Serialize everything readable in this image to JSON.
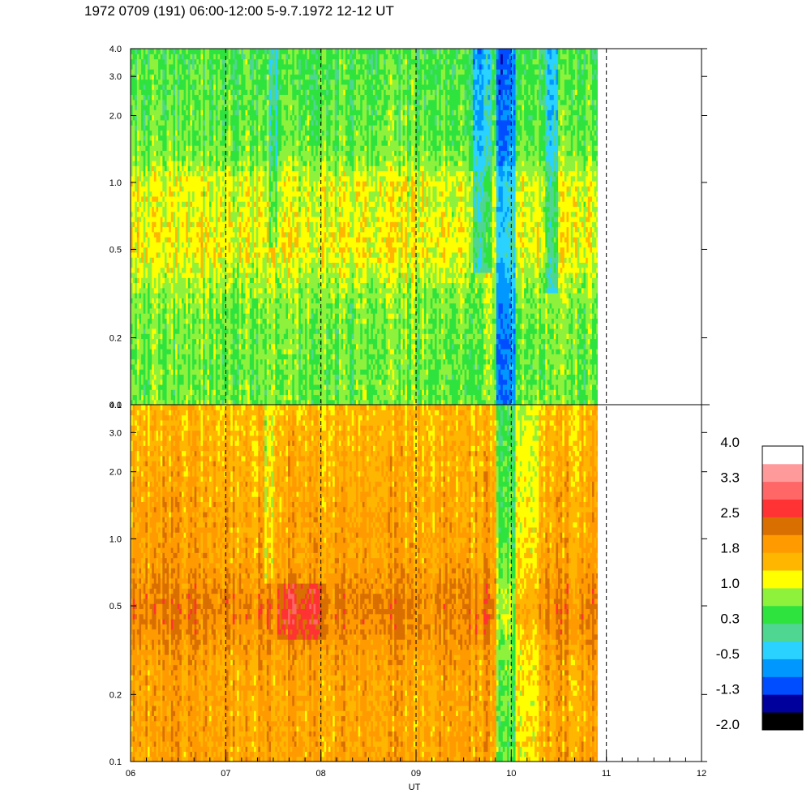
{
  "title": "1972 0709 (191) 06:00-12:00 5-9.7.1972  12-12 UT",
  "chart_data": {
    "type": "heatmap",
    "xlabel": "UT",
    "x_ticks": [
      "06",
      "07",
      "08",
      "09",
      "10",
      "11",
      "12"
    ],
    "x_range": [
      "06:00",
      "12:00"
    ],
    "data_end": "10:55",
    "vertical_dashed_lines": [
      "07",
      "08",
      "09",
      "10",
      "11"
    ],
    "y_scale": "log",
    "y_range": [
      0.1,
      4.0
    ],
    "panels": [
      {
        "name": "upper",
        "y_ticks": [
          "0.1",
          "0.2",
          "0.5",
          "1.0",
          "2.0",
          "3.0",
          "4.0"
        ],
        "dominant_colors": [
          "#2fe33e",
          "#4fd690",
          "#8ef23c",
          "#ffff00",
          "#ffb600"
        ]
      },
      {
        "name": "lower",
        "y_ticks": [
          "0.1",
          "0.2",
          "0.5",
          "1.0",
          "2.0",
          "3.0",
          "4.0"
        ],
        "dominant_colors": [
          "#ff9a00",
          "#ffb600",
          "#ffff00",
          "#d96f00"
        ]
      }
    ],
    "colorbar": {
      "labels": [
        "4.0",
        "3.3",
        "2.5",
        "1.8",
        "1.0",
        "0.3",
        "-0.5",
        "-1.3",
        "-2.0"
      ],
      "colors": [
        "#000000",
        "#00009d",
        "#004dff",
        "#0098ff",
        "#2ad2ff",
        "#4fd690",
        "#2fe33e",
        "#8ef23c",
        "#ffff00",
        "#ffb600",
        "#ff9a00",
        "#d96f00",
        "#ff3333",
        "#ff6666",
        "#ff9a9a",
        "#ffffff"
      ]
    }
  }
}
